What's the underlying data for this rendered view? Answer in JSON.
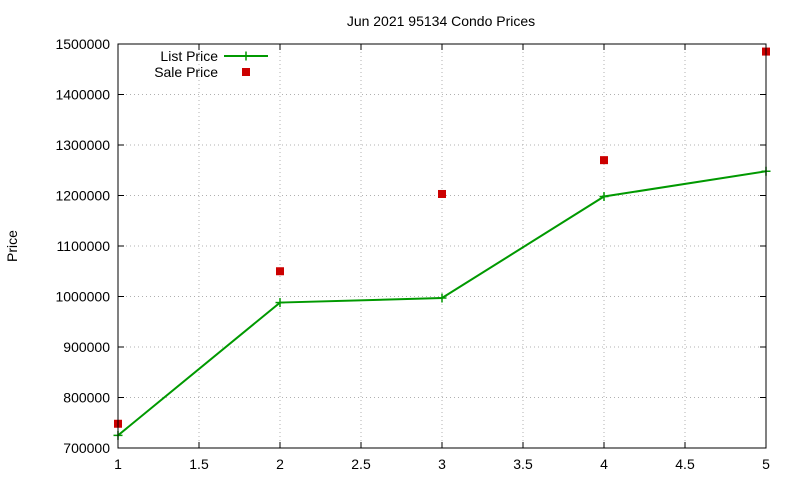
{
  "chart_data": {
    "type": "line",
    "title": "Jun 2021 95134 Condo Prices",
    "xlabel": "",
    "ylabel": "Price",
    "xlim": [
      1,
      5
    ],
    "ylim": [
      700000,
      1500000
    ],
    "xticks": [
      "1",
      "1.5",
      "2",
      "2.5",
      "3",
      "3.5",
      "4",
      "4.5",
      "5"
    ],
    "xtick_values": [
      1,
      1.5,
      2,
      2.5,
      3,
      3.5,
      4,
      4.5,
      5
    ],
    "yticks": [
      "700000",
      "800000",
      "900000",
      "1000000",
      "1100000",
      "1200000",
      "1300000",
      "1400000",
      "1500000"
    ],
    "ytick_values": [
      700000,
      800000,
      900000,
      1000000,
      1100000,
      1200000,
      1300000,
      1400000,
      1500000
    ],
    "grid": true,
    "legend_position": "top-left",
    "series": [
      {
        "name": "List Price",
        "style": "lines+points",
        "marker": "plus",
        "color": "#009900",
        "x": [
          1,
          2,
          3,
          4,
          5
        ],
        "y": [
          725000,
          988000,
          997000,
          1198000,
          1248000
        ]
      },
      {
        "name": "Sale Price",
        "style": "points",
        "marker": "square",
        "color": "#cc0000",
        "x": [
          1,
          2,
          3,
          4,
          5
        ],
        "y": [
          748000,
          1050000,
          1203000,
          1270000,
          1485000
        ]
      }
    ]
  }
}
